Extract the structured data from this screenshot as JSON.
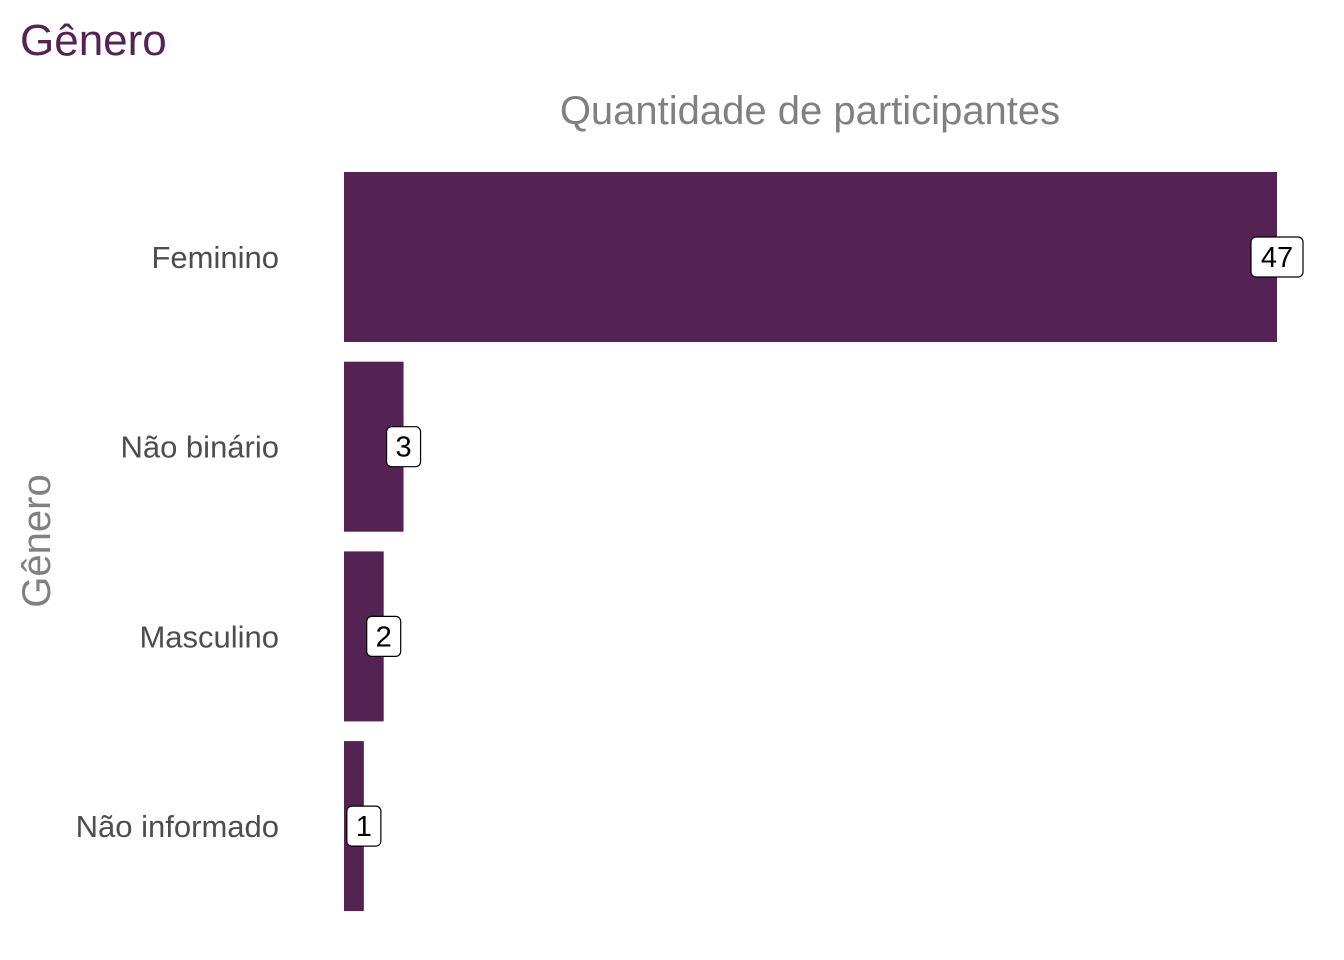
{
  "colors": {
    "bar": "#552353",
    "title": "#552353",
    "axis_title": "#808080",
    "tick_label": "#4d4d4d",
    "label_bg": "#ffffff",
    "label_border": "#000000"
  },
  "chart_data": {
    "type": "bar",
    "orientation": "horizontal",
    "title": "Gênero",
    "xlabel": "Quantidade de participantes",
    "ylabel": "Gênero",
    "xlabel_position": "top",
    "categories": [
      "Feminino",
      "Não binário",
      "Masculino",
      "Não informado"
    ],
    "values": [
      47,
      3,
      2,
      1
    ],
    "data_labels": [
      "47",
      "3",
      "2",
      "1"
    ],
    "xlim": [
      0,
      47
    ],
    "grid": false,
    "legend": "none",
    "x_tick_labels_shown": false
  }
}
